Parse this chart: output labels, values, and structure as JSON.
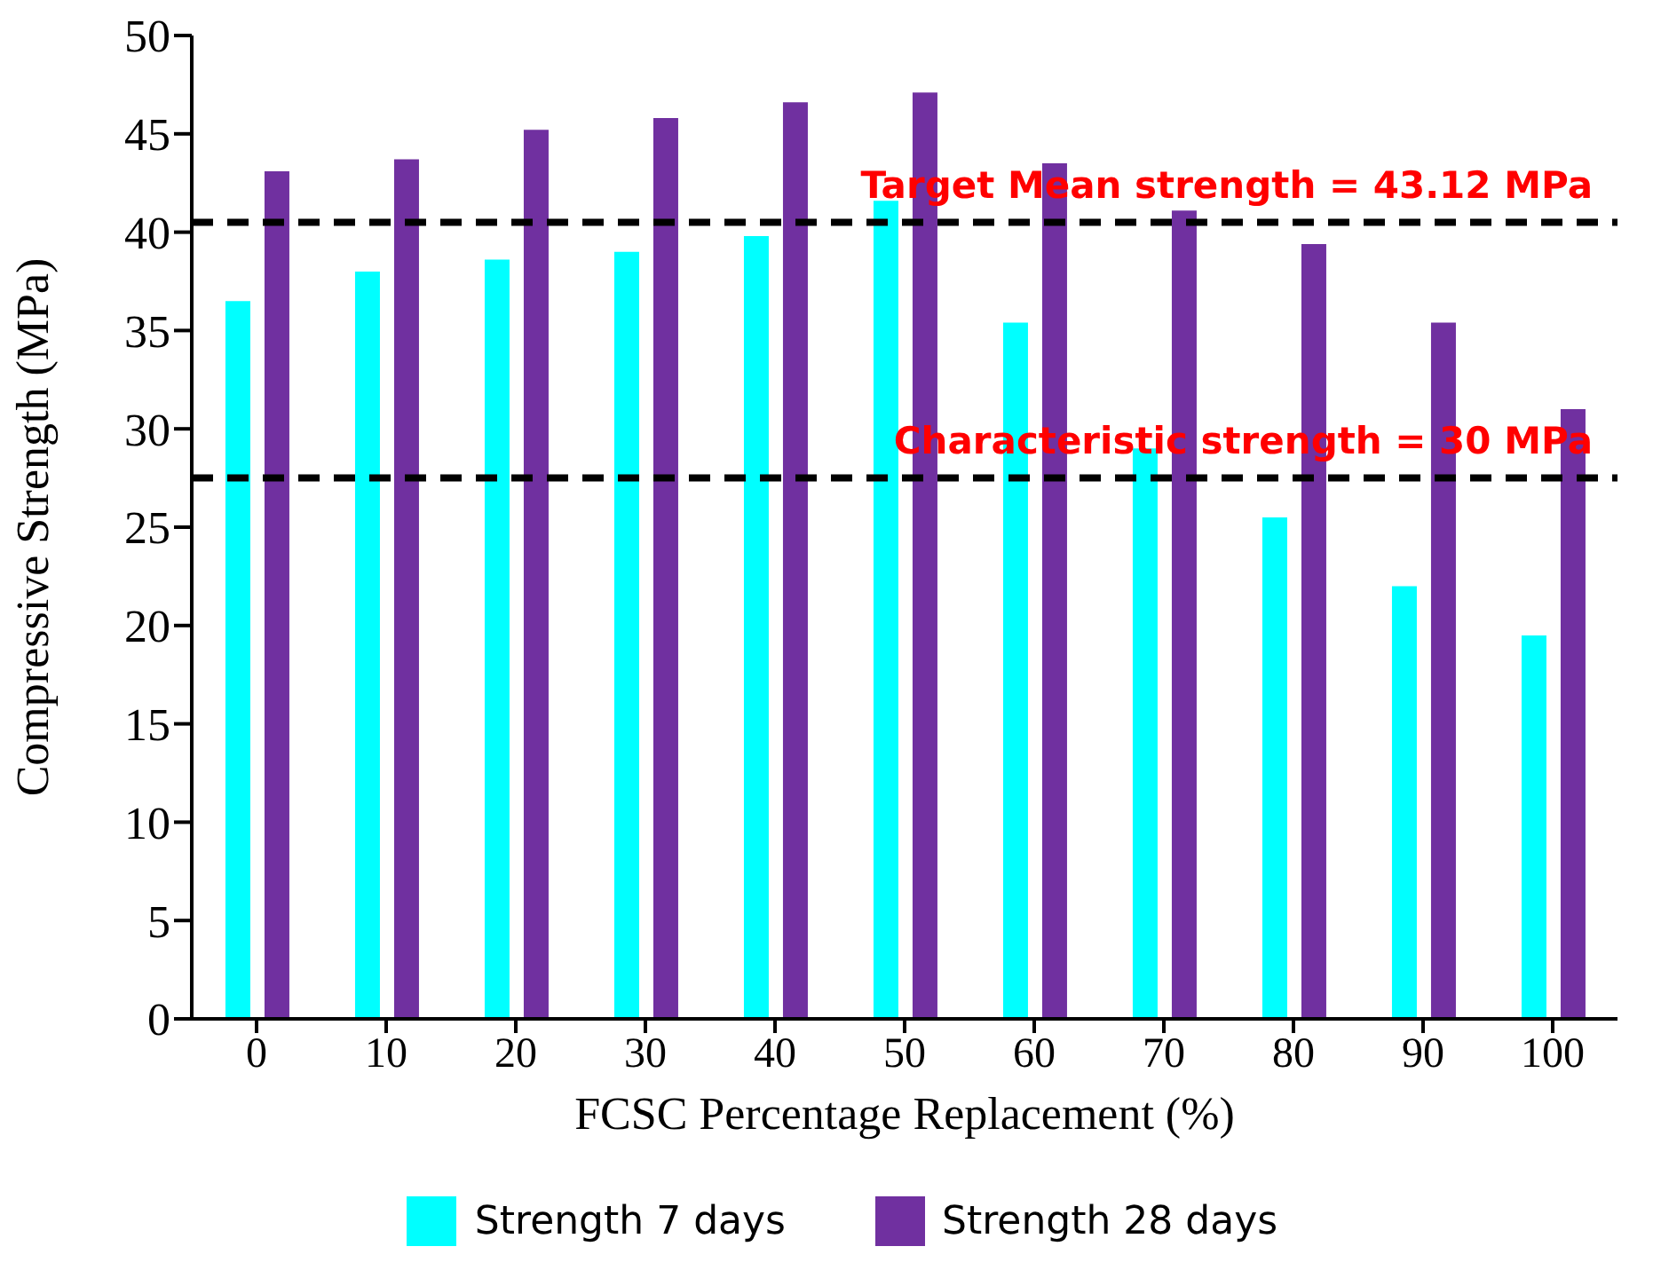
{
  "chart_data": {
    "type": "bar",
    "xlabel": "FCSC Percentage Replacement (%)",
    "ylabel": "Compressive Strength (MPa)",
    "categories": [
      "0",
      "10",
      "20",
      "30",
      "40",
      "50",
      "60",
      "70",
      "80",
      "90",
      "100"
    ],
    "series": [
      {
        "name": "Strength 7 days",
        "color": "#00ffff",
        "values": [
          36.5,
          38,
          38.6,
          39,
          39.8,
          41.6,
          35.4,
          29,
          25.5,
          22,
          19.5
        ]
      },
      {
        "name": "Strength 28 days",
        "color": "#7030a0",
        "values": [
          43.1,
          43.7,
          45.2,
          45.8,
          46.6,
          47.1,
          43.5,
          41.1,
          39.4,
          35.4,
          31
        ]
      }
    ],
    "ylim": [
      0,
      50
    ],
    "yticks": [
      0,
      5,
      10,
      15,
      20,
      25,
      30,
      35,
      40,
      45,
      50
    ],
    "grid": false,
    "legend": "bottom",
    "ref_lines": [
      {
        "axis": "y",
        "value": 40.5,
        "color": "#000000",
        "line_style": "dashed"
      },
      {
        "axis": "y",
        "value": 27.5,
        "color": "#000000",
        "line_style": "dashed"
      }
    ],
    "annotations": [
      "Target Mean strength = 43.12 MPa",
      "Characteristic strength = 30 MPa"
    ]
  }
}
